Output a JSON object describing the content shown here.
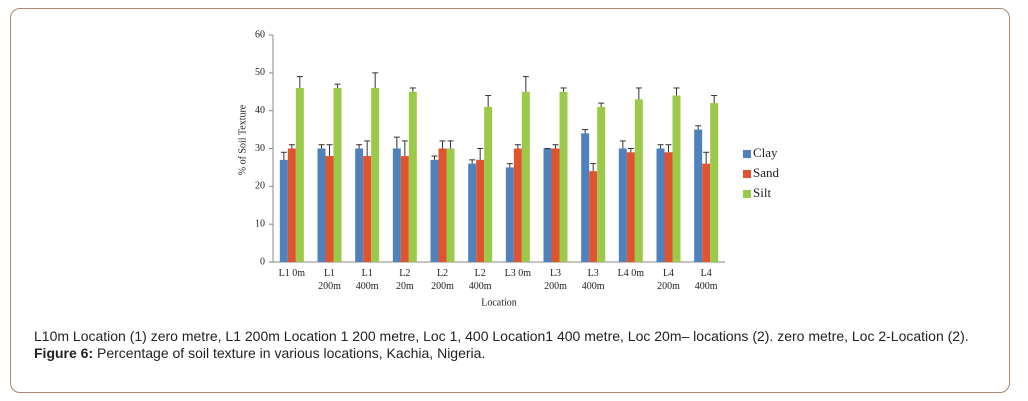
{
  "chart_data": {
    "type": "bar",
    "y_label": "% of Soil Texture",
    "x_label": "Location",
    "categories": [
      "L1 0m",
      "L1\n200m",
      "L1\n400m",
      "L2\n20m",
      "L2\n200m",
      "L2\n400m",
      "L3 0m",
      "L3\n200m",
      "L3\n400m",
      "L4 0m",
      "L4\n200m",
      "L4\n400m"
    ],
    "series": [
      {
        "name": "Clay",
        "color": "#4f81bd",
        "values": [
          27,
          30,
          30,
          30,
          27,
          26,
          25,
          30,
          34,
          30,
          30,
          35
        ],
        "errors": [
          2,
          1,
          1,
          3,
          1,
          1,
          1,
          0,
          1,
          2,
          1,
          1
        ]
      },
      {
        "name": "Sand",
        "color": "#e0532f",
        "values": [
          30,
          28,
          28,
          28,
          30,
          27,
          30,
          30,
          24,
          29,
          29,
          26
        ],
        "errors": [
          1,
          3,
          4,
          4,
          2,
          3,
          1,
          1,
          2,
          1,
          2,
          3
        ]
      },
      {
        "name": "Silt",
        "color": "#9bc94a",
        "values": [
          46,
          46,
          46,
          45,
          30,
          41,
          45,
          45,
          41,
          43,
          44,
          42
        ],
        "errors": [
          3,
          1,
          4,
          1,
          2,
          3,
          4,
          1,
          1,
          3,
          2,
          2
        ]
      }
    ],
    "ylim": [
      0,
      60
    ],
    "yticks": [
      0,
      10,
      20,
      30,
      40,
      50,
      60
    ],
    "grid": false,
    "legend": "right"
  },
  "caption": {
    "note": "L10m Location (1) zero metre, L1 200m Location 1 200 metre, Loc 1, 400 Location1 400 metre, Loc 20m– locations (2).  zero metre, Loc 2-Location (2).",
    "label": "Figure 6:",
    "text": " Percentage of soil texture in various locations, Kachia, Nigeria."
  }
}
